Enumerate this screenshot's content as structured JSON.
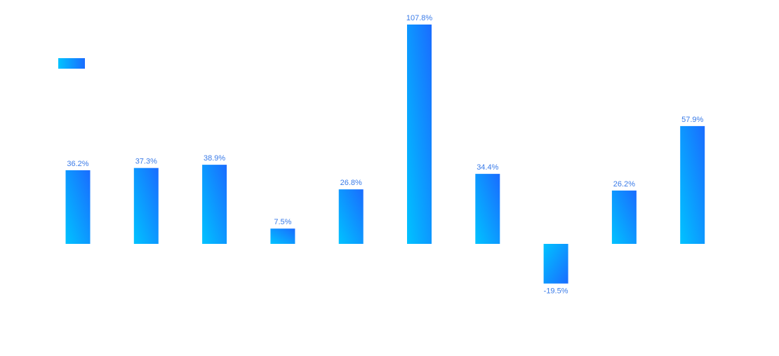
{
  "chart_data": {
    "type": "bar",
    "categories": [
      "",
      "",
      "",
      "",
      "",
      "",
      "",
      "",
      "",
      ""
    ],
    "values": [
      36.2,
      37.3,
      38.9,
      7.5,
      26.8,
      107.8,
      34.4,
      -19.5,
      26.2,
      57.9
    ],
    "data_labels": [
      "36.2%",
      "37.3%",
      "38.9%",
      "7.5%",
      "26.8%",
      "107.8%",
      "34.4%",
      "-19.5%",
      "26.2%",
      "57.9%"
    ],
    "unit": "%",
    "title": "",
    "xlabel": "",
    "ylabel": "",
    "legend": {
      "placement": "top-left",
      "entries": [
        ""
      ]
    },
    "grid": false,
    "colors": {
      "gradient_start": "#00c3ff",
      "gradient_end": "#1a6cff",
      "label": "#3a7be8"
    }
  }
}
